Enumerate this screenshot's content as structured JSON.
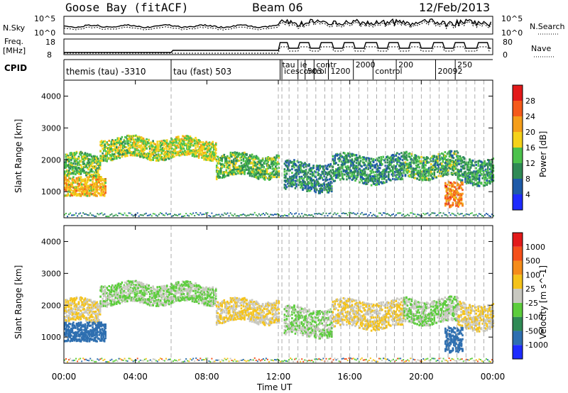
{
  "header": {
    "station": "Goose Bay (fitACF)",
    "beam": "Beam 06",
    "date": "12/Feb/2013"
  },
  "noise_panel": {
    "left_label": "N.Sky",
    "right_label": "N.Search",
    "tick_top": "10^5",
    "tick_bottom": "10^0"
  },
  "freq_panel": {
    "label_line1": "Freq.",
    "label_line2": "[MHz]",
    "tick_top": "18",
    "tick_bottom": "8",
    "right_label": "Nave",
    "right_tick_top": "80",
    "right_tick_bottom": "0"
  },
  "cpid": {
    "label": "CPID",
    "programs": [
      {
        "text": "themis (tau)  -3310",
        "start_hour": 0
      },
      {
        "text": "tau (fast) 503",
        "start_hour": 6
      },
      {
        "text": "tau",
        "start_hour": 12.1
      },
      {
        "text": "icescontrol",
        "start_hour": 12.2
      },
      {
        "text": "ie",
        "start_hour": 13.1
      },
      {
        "text": "503",
        "start_hour": 13.5
      },
      {
        "text": "contr",
        "start_hour": 14.0
      },
      {
        "text": "1200",
        "start_hour": 14.8
      },
      {
        "text": "2000",
        "start_hour": 16.2
      },
      {
        "text": "control",
        "start_hour": 17.3
      },
      {
        "text": "200",
        "start_hour": 18.6
      },
      {
        "text": "20092",
        "start_hour": 20.8
      },
      {
        "text": "250",
        "start_hour": 21.9
      }
    ]
  },
  "x_axis": {
    "title": "Time UT",
    "tick_labels": [
      "00:00",
      "04:00",
      "08:00",
      "12:00",
      "16:00",
      "20:00",
      "00:00"
    ],
    "range_hours": [
      0,
      24
    ]
  },
  "y_axis": {
    "title": "Slant Range [km]",
    "tick_labels": [
      "1000",
      "2000",
      "3000",
      "4000"
    ],
    "range_km": [
      180,
      4500
    ]
  },
  "power_colorbar": {
    "title": "Power [dB]",
    "ticks": [
      "4",
      "8",
      "12",
      "16",
      "20",
      "24",
      "28"
    ],
    "colors": [
      "#1e2bff",
      "#1e5aa8",
      "#2f8a55",
      "#4cc24c",
      "#f5d21a",
      "#f59e1a",
      "#f55a1a",
      "#e31a1a"
    ]
  },
  "velocity_colorbar": {
    "title": "Velocity  [m s^-1]",
    "ticks": [
      "1000",
      "500",
      "100",
      "25",
      "-25",
      "-100",
      "-500",
      "-1000"
    ],
    "colors": [
      "#1e2bff",
      "#2e6fb0",
      "#2f8a55",
      "#5ccd3c",
      "#c8c8c0",
      "#f5c31a",
      "#f58c1a",
      "#f5501a",
      "#e31a1a"
    ]
  },
  "chart_data": {
    "type": "heatmap",
    "description_keys": [
      "power",
      "velocity"
    ],
    "x_unit": "hours UT",
    "y_unit": "km",
    "program_change_hours": [
      6.0,
      12.0,
      12.2,
      12.6,
      13.1,
      13.6,
      14.1,
      14.6,
      15.0,
      15.5,
      16.0,
      16.5,
      17.0,
      17.5,
      18.0,
      18.5,
      19.0,
      19.5,
      20.0,
      20.5,
      21.0,
      21.5,
      22.0,
      22.5,
      23.0,
      23.5
    ],
    "scatter_bands": [
      {
        "start_hour": 0.0,
        "end_hour": 2.0,
        "center_km": 1800,
        "width_km": 350,
        "power_db": 14,
        "velocity": -25
      },
      {
        "start_hour": 2.0,
        "end_hour": 6.0,
        "center_km": 2350,
        "width_km": 320,
        "power_db": 16,
        "velocity": 25
      },
      {
        "start_hour": 6.0,
        "end_hour": 8.5,
        "center_km": 2350,
        "width_km": 300,
        "power_db": 17,
        "velocity": 25
      },
      {
        "start_hour": 8.5,
        "end_hour": 12.0,
        "center_km": 1800,
        "width_km": 360,
        "power_db": 13,
        "velocity": -25
      },
      {
        "start_hour": 12.3,
        "end_hour": 15.0,
        "center_km": 1450,
        "width_km": 450,
        "power_db": 9,
        "velocity": 25
      },
      {
        "start_hour": 15.0,
        "end_hour": 19.0,
        "center_km": 1700,
        "width_km": 420,
        "power_db": 10,
        "velocity": -25
      },
      {
        "start_hour": 19.0,
        "end_hour": 22.0,
        "center_km": 1800,
        "width_km": 380,
        "power_db": 12,
        "velocity": 25
      },
      {
        "start_hour": 22.0,
        "end_hour": 24.0,
        "center_km": 1650,
        "width_km": 400,
        "power_db": 11,
        "velocity": -25
      }
    ],
    "near_range_patch": {
      "start_hour": 0.0,
      "end_hour": 2.3,
      "center_km": 1150,
      "width_km": 300,
      "power_db": 20,
      "velocity": 300
    },
    "evening_patch": {
      "start_hour": 21.3,
      "end_hour": 22.3,
      "center_km": 900,
      "width_km": 400,
      "power_db": 24,
      "velocity": 200
    }
  }
}
